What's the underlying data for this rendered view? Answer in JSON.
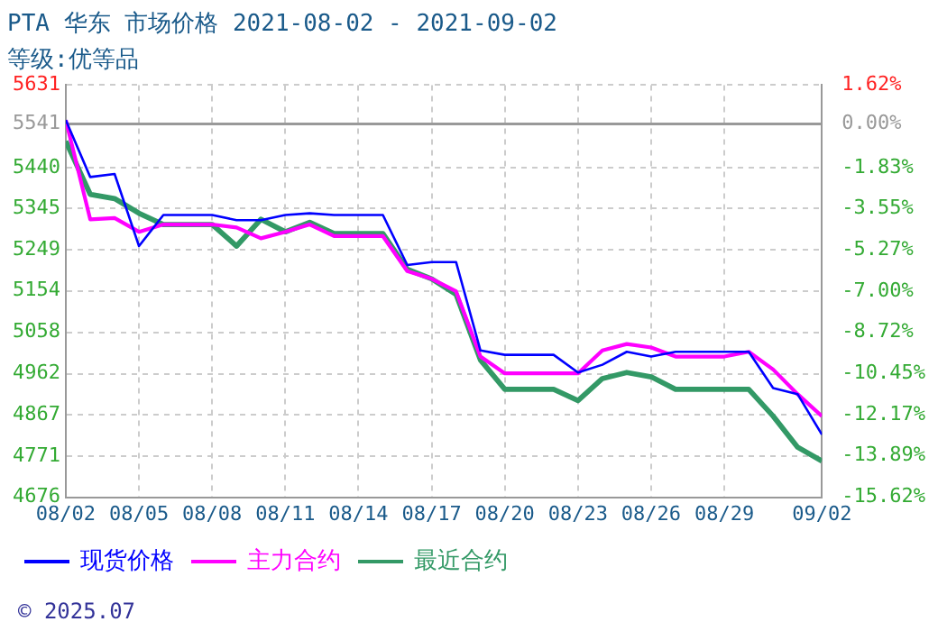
{
  "chart_data": {
    "type": "line",
    "title": "PTA 华东 市场价格 2021-08-02 - 2021-09-02",
    "subtitle": "等级:优等品",
    "x": [
      "2021-08-02",
      "2021-08-03",
      "2021-08-04",
      "2021-08-05",
      "2021-08-06",
      "2021-08-07",
      "2021-08-08",
      "2021-08-09",
      "2021-08-10",
      "2021-08-11",
      "2021-08-12",
      "2021-08-13",
      "2021-08-14",
      "2021-08-15",
      "2021-08-16",
      "2021-08-17",
      "2021-08-18",
      "2021-08-19",
      "2021-08-20",
      "2021-08-21",
      "2021-08-22",
      "2021-08-23",
      "2021-08-24",
      "2021-08-25",
      "2021-08-26",
      "2021-08-27",
      "2021-08-28",
      "2021-08-29",
      "2021-08-30",
      "2021-08-31",
      "2021-09-01",
      "2021-09-02"
    ],
    "series": [
      {
        "name": "现货价格",
        "color": "#0000ff",
        "values": [
          5550,
          5418,
          5425,
          5258,
          5330,
          5330,
          5330,
          5318,
          5318,
          5330,
          5334,
          5330,
          5330,
          5330,
          5214,
          5221,
          5221,
          5016,
          5006,
          5006,
          5006,
          4965,
          4983,
          5013,
          5002,
          5013,
          5013,
          5013,
          5013,
          4929,
          4915,
          4821
        ]
      },
      {
        "name": "主力合约",
        "color": "#ff00ff",
        "values": [
          5550,
          5320,
          5323,
          5291,
          5308,
          5308,
          5308,
          5301,
          5276,
          5291,
          5308,
          5281,
          5281,
          5281,
          5200,
          5182,
          5153,
          5002,
          4963,
          4963,
          4963,
          4963,
          5016,
          5031,
          5023,
          5002,
          5002,
          5002,
          5013,
          4972,
          4915,
          4864
        ]
      },
      {
        "name": "最近合约",
        "color": "#339966",
        "values": [
          5501,
          5378,
          5368,
          5334,
          5308,
          5308,
          5308,
          5258,
          5320,
          5291,
          5313,
          5287,
          5287,
          5287,
          5204,
          5182,
          5146,
          4994,
          4926,
          4926,
          4926,
          4900,
          4951,
          4965,
          4955,
          4926,
          4926,
          4926,
          4926,
          4864,
          4792,
          4760
        ]
      }
    ],
    "ylim": [
      4676,
      5631
    ],
    "yticks": [
      4676,
      4771,
      4867,
      4962,
      5058,
      5154,
      5249,
      5345,
      5440,
      5541,
      5631
    ],
    "y2lim": [
      -15.62,
      1.62
    ],
    "y2ticks": [
      {
        "value": -15.62,
        "label": "-15.62%"
      },
      {
        "value": -13.89,
        "label": "-13.89%"
      },
      {
        "value": -12.17,
        "label": "-12.17%"
      },
      {
        "value": -10.45,
        "label": "-10.45%"
      },
      {
        "value": -8.72,
        "label": "-8.72%"
      },
      {
        "value": -7.0,
        "label": "-7.00%"
      },
      {
        "value": -5.27,
        "label": "-5.27%"
      },
      {
        "value": -3.55,
        "label": "-3.55%"
      },
      {
        "value": -1.83,
        "label": "-1.83%"
      },
      {
        "value": 0,
        "label": "0.00%"
      },
      {
        "value": 1.62,
        "label": "1.62%"
      }
    ],
    "xlim": [
      "2021-08-02",
      "2021-09-02"
    ],
    "xticks": [
      {
        "value": "2021-08-02",
        "label": "08/02"
      },
      {
        "value": "2021-08-05",
        "label": "08/05"
      },
      {
        "value": "2021-08-08",
        "label": "08/08"
      },
      {
        "value": "2021-08-11",
        "label": "08/11"
      },
      {
        "value": "2021-08-14",
        "label": "08/14"
      },
      {
        "value": "2021-08-17",
        "label": "08/17"
      },
      {
        "value": "2021-08-20",
        "label": "08/20"
      },
      {
        "value": "2021-08-23",
        "label": "08/23"
      },
      {
        "value": "2021-08-26",
        "label": "08/26"
      },
      {
        "value": "2021-08-29",
        "label": "08/29"
      },
      {
        "value": "2021-09-02",
        "label": "09/02"
      }
    ],
    "ref_lines": [
      {
        "axis": "y",
        "value": 5541,
        "color": "#999999"
      }
    ],
    "grid": true,
    "legend": "bottom left",
    "marker": "none",
    "line_style": "solid",
    "annotations": [
      "© 2025.07"
    ]
  }
}
